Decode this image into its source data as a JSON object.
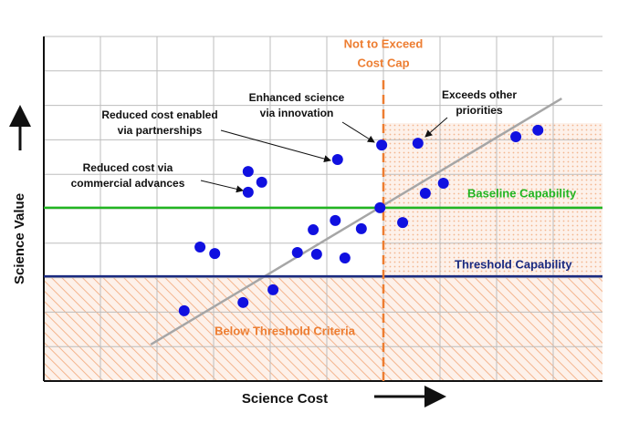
{
  "chart_data": {
    "type": "scatter",
    "x_label": "Science Cost",
    "y_label": "Science Value",
    "color": "#1010e0",
    "xlim": [
      0,
      10
    ],
    "ylim": [
      0,
      10
    ],
    "xticks": [
      1,
      2,
      3,
      4,
      5,
      6,
      7,
      8,
      9
    ],
    "yticks": [
      1,
      2,
      3,
      4,
      5,
      6,
      7,
      8,
      9,
      10
    ],
    "grid": true,
    "x": [
      2.48,
      3.52,
      4.05,
      2.76,
      3.02,
      4.48,
      4.82,
      5.32,
      4.76,
      5.15,
      5.61,
      6.34,
      5.94,
      3.61,
      3.85,
      3.61,
      5.19,
      5.97,
      6.61,
      6.74,
      7.06,
      8.34,
      8.73
    ],
    "y": [
      2.04,
      2.28,
      2.65,
      3.89,
      3.7,
      3.73,
      3.68,
      3.57,
      4.39,
      4.66,
      4.42,
      4.6,
      5.03,
      6.08,
      5.77,
      5.48,
      6.43,
      6.85,
      6.9,
      5.45,
      5.74,
      7.09,
      7.28
    ],
    "trend_line": {
      "x": [
        1.89,
        9.15
      ],
      "y": [
        1.06,
        8.2
      ],
      "color": "#a6a6a6"
    },
    "reference_lines": [
      {
        "label": "Baseline Capability",
        "y": 5.03,
        "color": "#22b522"
      },
      {
        "label": "Threshold Capability",
        "y": 3.04,
        "color": "#1a2a80"
      }
    ],
    "cost_cap": {
      "label": [
        "Not to Exceed",
        "Cost Cap"
      ],
      "x": 6.0,
      "color": "#ed7d31"
    },
    "region_label": "Below Threshold Criteria",
    "annotations": [
      [
        "Reduced cost via",
        "commercial advances"
      ],
      [
        "Reduced cost enabled",
        "via partnerships"
      ],
      [
        "Enhanced science",
        "via innovation"
      ],
      [
        "Exceeds other",
        "priorities"
      ]
    ]
  }
}
